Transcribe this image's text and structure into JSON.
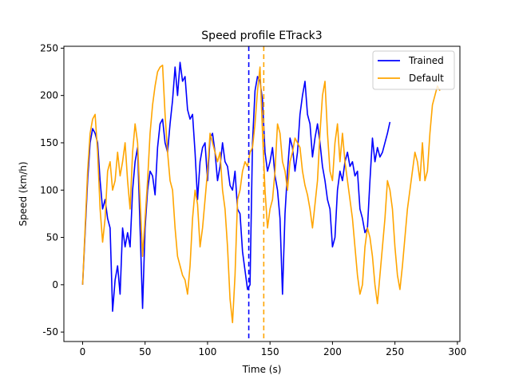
{
  "chart_data": {
    "type": "line",
    "title": "Speed profile ETrack3",
    "xlabel": "Time (s)",
    "ylabel": "Speed (km/h)",
    "xlim": [
      -15,
      302
    ],
    "ylim": [
      -60,
      252
    ],
    "xticks": [
      0,
      50,
      100,
      150,
      200,
      250,
      300
    ],
    "yticks": [
      -50,
      0,
      50,
      100,
      150,
      200,
      250
    ],
    "grid": false,
    "legend_position": "top-right",
    "series": [
      {
        "name": "Trained",
        "color": "#0000ff",
        "x": [
          0,
          2,
          4,
          6,
          8,
          10,
          12,
          14,
          16,
          18,
          20,
          22,
          24,
          26,
          28,
          30,
          32,
          34,
          36,
          38,
          40,
          42,
          44,
          46,
          48,
          50,
          52,
          54,
          56,
          58,
          60,
          62,
          64,
          66,
          68,
          70,
          72,
          74,
          76,
          78,
          80,
          82,
          84,
          86,
          88,
          90,
          92,
          94,
          96,
          98,
          100,
          102,
          104,
          106,
          108,
          110,
          112,
          114,
          116,
          118,
          120,
          122,
          124,
          126,
          128,
          130,
          132,
          134,
          136,
          138,
          140,
          142,
          144,
          146,
          148,
          150,
          152,
          154,
          156,
          158,
          160,
          162,
          164,
          166,
          168,
          170,
          172,
          174,
          176,
          178,
          180,
          182,
          184,
          186,
          188,
          190,
          192,
          194,
          196,
          198,
          200,
          202,
          204,
          206,
          208,
          210,
          212,
          214,
          216,
          218,
          220,
          222,
          224,
          226,
          228,
          230,
          232,
          234,
          236,
          238,
          240,
          242,
          244,
          246
        ],
        "values": [
          0,
          55,
          110,
          150,
          165,
          160,
          150,
          110,
          80,
          90,
          70,
          60,
          -28,
          5,
          20,
          -10,
          60,
          40,
          55,
          40,
          100,
          130,
          145,
          60,
          -25,
          60,
          100,
          120,
          115,
          95,
          145,
          170,
          175,
          150,
          140,
          170,
          195,
          230,
          200,
          235,
          215,
          220,
          185,
          175,
          180,
          140,
          90,
          130,
          145,
          150,
          110,
          155,
          160,
          140,
          110,
          125,
          150,
          130,
          125,
          105,
          100,
          120,
          80,
          75,
          35,
          15,
          -5,
          0,
          150,
          205,
          220,
          215,
          195,
          140,
          120,
          130,
          145,
          115,
          100,
          70,
          -10,
          75,
          120,
          155,
          145,
          120,
          140,
          180,
          200,
          215,
          180,
          170,
          135,
          155,
          170,
          150,
          125,
          110,
          90,
          80,
          40,
          50,
          100,
          120,
          110,
          130,
          140,
          125,
          130,
          115,
          120,
          80,
          70,
          55,
          60,
          110,
          155,
          130,
          145,
          135,
          140,
          150,
          160,
          172
        ]
      },
      {
        "name": "Default",
        "color": "#ffa500",
        "x": [
          0,
          2,
          4,
          6,
          8,
          10,
          12,
          14,
          16,
          18,
          20,
          22,
          24,
          26,
          28,
          30,
          32,
          34,
          36,
          38,
          40,
          42,
          44,
          46,
          48,
          50,
          52,
          54,
          56,
          58,
          60,
          62,
          64,
          66,
          68,
          70,
          72,
          74,
          76,
          78,
          80,
          82,
          84,
          86,
          88,
          90,
          92,
          94,
          96,
          98,
          100,
          102,
          104,
          106,
          108,
          110,
          112,
          114,
          116,
          118,
          120,
          122,
          124,
          126,
          128,
          130,
          132,
          134,
          136,
          138,
          140,
          142,
          144,
          146,
          148,
          150,
          152,
          154,
          156,
          158,
          160,
          162,
          164,
          166,
          168,
          170,
          172,
          174,
          176,
          178,
          180,
          182,
          184,
          186,
          188,
          190,
          192,
          194,
          196,
          198,
          200,
          202,
          204,
          206,
          208,
          210,
          212,
          214,
          216,
          218,
          220,
          222,
          224,
          226,
          228,
          230,
          232,
          234,
          236,
          238,
          240,
          242,
          244,
          246,
          248,
          250,
          252,
          254,
          256,
          258,
          260,
          262,
          264,
          266,
          268,
          270,
          272,
          274,
          276,
          278,
          280,
          282,
          284,
          286
        ],
        "values": [
          0,
          60,
          120,
          160,
          175,
          180,
          140,
          80,
          45,
          70,
          120,
          130,
          100,
          110,
          140,
          115,
          130,
          150,
          110,
          80,
          140,
          170,
          150,
          90,
          30,
          70,
          110,
          160,
          190,
          210,
          225,
          230,
          232,
          180,
          140,
          110,
          100,
          60,
          30,
          20,
          10,
          5,
          -10,
          20,
          70,
          100,
          85,
          40,
          60,
          90,
          120,
          160,
          150,
          140,
          130,
          140,
          100,
          80,
          40,
          -15,
          -40,
          10,
          90,
          100,
          120,
          130,
          125,
          140,
          145,
          170,
          205,
          230,
          160,
          100,
          60,
          80,
          90,
          120,
          170,
          160,
          130,
          120,
          100,
          130,
          140,
          155,
          150,
          145,
          120,
          105,
          95,
          80,
          60,
          85,
          110,
          160,
          200,
          215,
          160,
          120,
          110,
          150,
          170,
          130,
          160,
          130,
          110,
          90,
          70,
          40,
          10,
          -10,
          0,
          40,
          60,
          50,
          30,
          0,
          -20,
          10,
          40,
          70,
          110,
          100,
          80,
          40,
          10,
          -5,
          20,
          50,
          80,
          100,
          120,
          140,
          130,
          110,
          150,
          110,
          120,
          160,
          190,
          200,
          210,
          205
        ]
      }
    ],
    "vlines": [
      {
        "x": 133,
        "color": "#0000ff",
        "style": "dashed"
      },
      {
        "x": 145,
        "color": "#ffa500",
        "style": "dashed"
      }
    ]
  }
}
